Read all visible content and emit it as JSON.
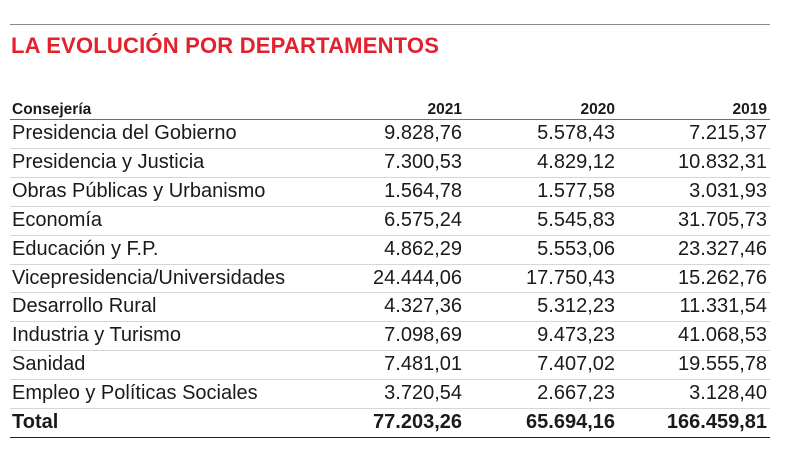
{
  "title": "LA EVOLUCIÓN POR DEPARTAMENTOS",
  "colors": {
    "title": "#e3212d",
    "text": "#1a1a1a"
  },
  "table": {
    "headers": [
      "Consejería",
      "2021",
      "2020",
      "2019"
    ],
    "rows": [
      [
        "Presidencia del Gobierno",
        "9.828,76",
        "5.578,43",
        "7.215,37"
      ],
      [
        "Presidencia y Justicia",
        "7.300,53",
        "4.829,12",
        "10.832,31"
      ],
      [
        "Obras Públicas y Urbanismo",
        "1.564,78",
        "1.577,58",
        "3.031,93"
      ],
      [
        "Economía",
        "6.575,24",
        "5.545,83",
        "31.705,73"
      ],
      [
        "Educación y F.P.",
        "4.862,29",
        "5.553,06",
        "23.327,46"
      ],
      [
        "Vicepresidencia/Universidades",
        "24.444,06",
        "17.750,43",
        "15.262,76"
      ],
      [
        "Desarrollo Rural",
        "4.327,36",
        "5.312,23",
        "11.331,54"
      ],
      [
        "Industria y Turismo",
        "7.098,69",
        "9.473,23",
        "41.068,53"
      ],
      [
        "Sanidad",
        "7.481,01",
        "7.407,02",
        "19.555,78"
      ],
      [
        "Empleo y Políticas Sociales",
        "3.720,54",
        "2.667,23",
        "3.128,40"
      ]
    ],
    "total": [
      "Total",
      "77.203,26",
      "65.694,16",
      "166.459,81"
    ]
  }
}
